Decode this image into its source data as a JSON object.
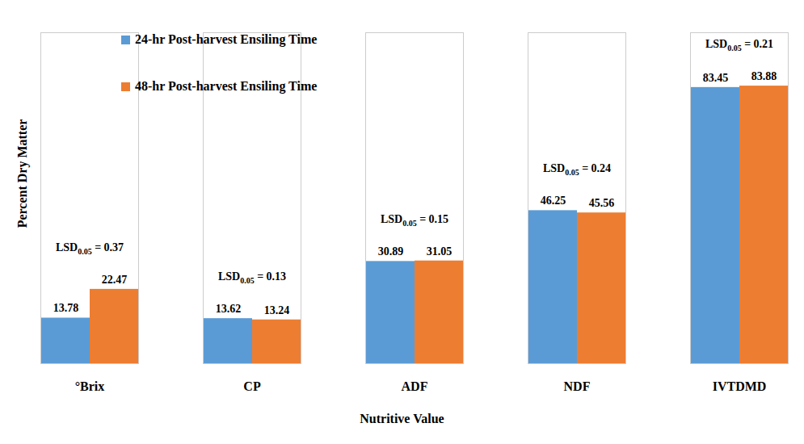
{
  "chart_data": {
    "type": "bar",
    "xlabel": "Nutritive Value",
    "ylabel": "Percent Dry Matter",
    "categories": [
      "°Brix",
      "CP",
      "ADF",
      "NDF",
      "IVTDMD"
    ],
    "series": [
      {
        "name": "24-hr Post-harvest Ensiling Time",
        "color": "#5b9bd5",
        "values": [
          13.78,
          13.62,
          30.89,
          46.25,
          83.45
        ]
      },
      {
        "name": "48-hr Post-harvest Ensiling Time",
        "color": "#ed7d31",
        "values": [
          22.47,
          13.24,
          31.05,
          45.56,
          83.88
        ]
      }
    ],
    "annotations": [
      {
        "category": "°Brix",
        "text": "LSD0.05 = 0.37",
        "subscript": "0.05"
      },
      {
        "category": "CP",
        "text": "LSD0.05 = 0.13",
        "subscript": "0.05"
      },
      {
        "category": "ADF",
        "text": "LSD0.05 = 0.15",
        "subscript": "0.05"
      },
      {
        "category": "NDF",
        "text": "LSD0.05 = 0.24",
        "subscript": "0.05"
      },
      {
        "category": "IVTDMD",
        "text": "LSD0.05 = 0.21",
        "subscript": "0.05"
      }
    ],
    "ylim": [
      0,
      100
    ],
    "yticks": [],
    "grid": false,
    "legend": "top-left",
    "data_labels": true,
    "tick_labels": "x"
  }
}
